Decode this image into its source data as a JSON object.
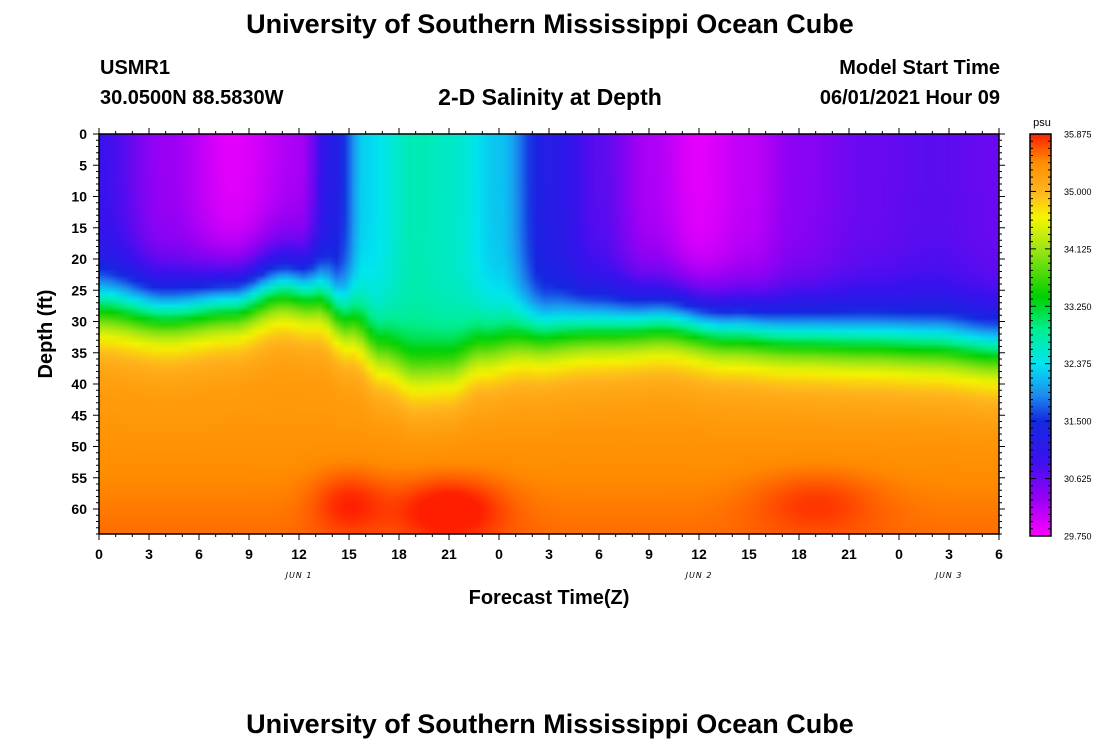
{
  "header": {
    "title": "University of Southern Mississippi Ocean Cube",
    "station": "USMR1",
    "location": "30.0500N  88.5830W",
    "plot_title": "2-D Salinity at Depth",
    "model_label": "Model Start Time",
    "model_time": "06/01/2021 Hour 09"
  },
  "footer": {
    "title": "University of Southern Mississippi Ocean Cube"
  },
  "chart_data": {
    "type": "heatmap",
    "title": "2-D Salinity at Depth",
    "xlabel": "Forecast Time(Z)",
    "ylabel": "Depth (ft)",
    "x_range": [
      0,
      54
    ],
    "y_range": [
      0,
      64
    ],
    "x_ticks": [
      0,
      3,
      6,
      9,
      12,
      15,
      18,
      21,
      24,
      27,
      30,
      33,
      36,
      39,
      42,
      45,
      48,
      51,
      54
    ],
    "x_tick_labels": [
      "0",
      "3",
      "6",
      "9",
      "12",
      "15",
      "18",
      "21",
      "0",
      "3",
      "6",
      "9",
      "12",
      "15",
      "18",
      "21",
      "0",
      "3",
      "6"
    ],
    "y_ticks": [
      0,
      5,
      10,
      15,
      20,
      25,
      30,
      35,
      40,
      45,
      50,
      55,
      60
    ],
    "y_tick_labels": [
      "0",
      "5",
      "10",
      "15",
      "20",
      "25",
      "30",
      "35",
      "40",
      "45",
      "50",
      "55",
      "60"
    ],
    "day_labels": [
      {
        "x": 12,
        "label": "JUN 1"
      },
      {
        "x": 36,
        "label": "JUN 2"
      },
      {
        "x": 51,
        "label": "JUN 3"
      }
    ],
    "colorbar": {
      "unit": "psu",
      "min": 29.75,
      "max": 35.875,
      "tick_values": [
        35.875,
        35.0,
        34.125,
        33.25,
        32.375,
        31.5,
        30.625,
        29.75
      ],
      "tick_labels": [
        "35.875",
        "35.000",
        "34.125",
        "33.250",
        "32.375",
        "31.500",
        "30.625",
        "29.750"
      ]
    },
    "colormap": [
      {
        "v": 29.75,
        "c": "#ff00ff"
      },
      {
        "v": 30.3,
        "c": "#9b00f5"
      },
      {
        "v": 30.9,
        "c": "#3a12ee"
      },
      {
        "v": 31.5,
        "c": "#1428e0"
      },
      {
        "v": 31.9,
        "c": "#1e8cf0"
      },
      {
        "v": 32.375,
        "c": "#00e6f0"
      },
      {
        "v": 32.9,
        "c": "#00ee90"
      },
      {
        "v": 33.4,
        "c": "#00d000"
      },
      {
        "v": 34.125,
        "c": "#9ee614"
      },
      {
        "v": 34.6,
        "c": "#f5f500"
      },
      {
        "v": 35.0,
        "c": "#ffb41e"
      },
      {
        "v": 35.45,
        "c": "#ff8c00"
      },
      {
        "v": 35.875,
        "c": "#ff1e00"
      }
    ],
    "fields": {
      "upper_layer_salinity": {
        "t": [
          0,
          4,
          8,
          12,
          14,
          16,
          19,
          21,
          24,
          27,
          30,
          33,
          36,
          39,
          42,
          46,
          50,
          54
        ],
        "v": [
          30.9,
          30.3,
          29.9,
          30.2,
          31.2,
          32.3,
          32.7,
          32.6,
          32.2,
          31.2,
          30.7,
          30.2,
          29.9,
          30.1,
          30.4,
          30.6,
          30.7,
          30.6
        ]
      },
      "halocline_depth_ft": {
        "t": [
          0,
          4,
          8,
          11,
          13,
          15,
          17,
          19,
          21,
          23,
          26,
          30,
          34,
          38,
          42,
          46,
          50,
          54
        ],
        "v": [
          27.5,
          28.5,
          27.0,
          24.5,
          25.5,
          30.0,
          35.0,
          38.0,
          37.5,
          34.5,
          32.5,
          31.0,
          30.0,
          31.5,
          32.5,
          33.0,
          33.5,
          34.5
        ]
      },
      "deep_salinity": {
        "base": 35.32,
        "bottom_increment": 0.25
      },
      "deep_max_blobs": [
        {
          "t": 15.0,
          "depth": 59,
          "dt": 2.2,
          "dd": 5,
          "amp": 0.35
        },
        {
          "t": 21.0,
          "depth": 60,
          "dt": 3.2,
          "dd": 5,
          "amp": 0.5
        },
        {
          "t": 43.0,
          "depth": 59,
          "dt": 3.8,
          "dd": 5,
          "amp": 0.28
        }
      ]
    }
  }
}
